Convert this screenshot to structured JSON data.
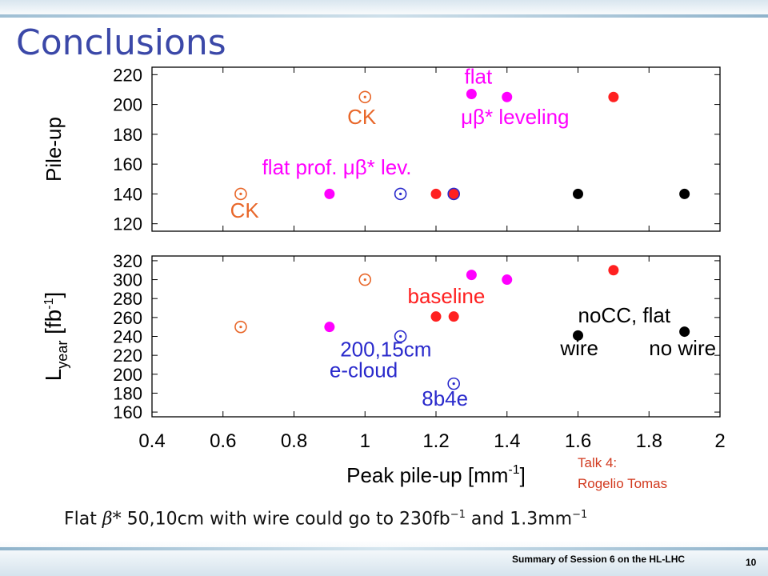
{
  "slide": {
    "title": "Conclusions",
    "talk_note": [
      "Talk 4:",
      "Rogelio Tomas"
    ],
    "conclusion": {
      "part1": "Flat ",
      "beta": "β*",
      "part2": " 50,10cm with wire could go to 230fb",
      "exp1": "−1",
      "part3": " and 1.3mm",
      "exp2": "−1"
    },
    "footer": "Summary of Session 6 on the HL-LHC",
    "page_number": "10"
  },
  "colors": {
    "title": "#3b48a8",
    "orange": "#e8672a",
    "magenta": "#ff00ff",
    "red": "#ff2020",
    "black": "#000000",
    "blue": "#2a2acc",
    "note": "#d23a1f"
  },
  "chart_data": [
    {
      "type": "scatter",
      "ylabel": "Pile-up",
      "ylim": [
        115,
        225
      ],
      "yticks": [
        220,
        200,
        180,
        160,
        140,
        120
      ],
      "xlim": [
        0.4,
        2.0
      ],
      "grid": false,
      "points": [
        {
          "x": 0.65,
          "y": 140,
          "color": "#e8672a",
          "marker": "circle-dot"
        },
        {
          "x": 1.0,
          "y": 205,
          "color": "#e8672a",
          "marker": "circle-dot"
        },
        {
          "x": 0.9,
          "y": 140,
          "color": "#ff00ff",
          "marker": "filled"
        },
        {
          "x": 1.3,
          "y": 207,
          "color": "#ff00ff",
          "marker": "filled"
        },
        {
          "x": 1.4,
          "y": 205,
          "color": "#ff00ff",
          "marker": "filled"
        },
        {
          "x": 1.1,
          "y": 140,
          "color": "#2a2acc",
          "marker": "circle-dot"
        },
        {
          "x": 1.2,
          "y": 140,
          "color": "#ff2020",
          "marker": "filled"
        },
        {
          "x": 1.25,
          "y": 140,
          "color": "#ff2020",
          "marker": "filled"
        },
        {
          "x": 1.25,
          "y": 140,
          "color": "#2a2acc",
          "marker": "ring"
        },
        {
          "x": 1.7,
          "y": 205,
          "color": "#ff2020",
          "marker": "filled"
        },
        {
          "x": 1.6,
          "y": 140,
          "color": "#000000",
          "marker": "filled"
        },
        {
          "x": 1.9,
          "y": 140,
          "color": "#000000",
          "marker": "filled"
        }
      ],
      "annotations": [
        {
          "text": "flat",
          "color": "#ff00ff",
          "x": 1.28,
          "y": 214
        },
        {
          "text": "μβ* leveling",
          "color": "#ff00ff",
          "x": 1.27,
          "y": 187
        },
        {
          "text": "CK",
          "color": "#e8672a",
          "x": 0.95,
          "y": 187
        },
        {
          "text": "flat prof. μβ* lev.",
          "color": "#ff00ff",
          "x": 0.71,
          "y": 153
        },
        {
          "text": "CK",
          "color": "#e8672a",
          "x": 0.62,
          "y": 124
        }
      ]
    },
    {
      "type": "scatter",
      "ylabel": "L",
      "ylabel_sub": "year",
      "ylabel_unit": "[fb",
      "ylabel_exp": "-1",
      "ylabel_close": "]",
      "ylim": [
        155,
        325
      ],
      "yticks": [
        320,
        300,
        280,
        260,
        240,
        220,
        200,
        180,
        160
      ],
      "xlim": [
        0.4,
        2.0
      ],
      "xticks": [
        0.4,
        0.6,
        0.8,
        1,
        1.2,
        1.4,
        1.6,
        1.8,
        2
      ],
      "xlabel": "Peak pile-up [mm",
      "xlabel_exp": "-1",
      "xlabel_close": "]",
      "grid": false,
      "points": [
        {
          "x": 0.65,
          "y": 250,
          "color": "#e8672a",
          "marker": "circle-dot"
        },
        {
          "x": 1.0,
          "y": 300,
          "color": "#e8672a",
          "marker": "circle-dot"
        },
        {
          "x": 0.9,
          "y": 250,
          "color": "#ff00ff",
          "marker": "filled"
        },
        {
          "x": 1.3,
          "y": 305,
          "color": "#ff00ff",
          "marker": "filled"
        },
        {
          "x": 1.4,
          "y": 300,
          "color": "#ff00ff",
          "marker": "filled"
        },
        {
          "x": 1.2,
          "y": 261,
          "color": "#ff2020",
          "marker": "filled"
        },
        {
          "x": 1.25,
          "y": 261,
          "color": "#ff2020",
          "marker": "filled"
        },
        {
          "x": 1.7,
          "y": 310,
          "color": "#ff2020",
          "marker": "filled"
        },
        {
          "x": 1.1,
          "y": 240,
          "color": "#2a2acc",
          "marker": "circle-dot"
        },
        {
          "x": 1.25,
          "y": 190,
          "color": "#2a2acc",
          "marker": "circle-dot"
        },
        {
          "x": 1.6,
          "y": 241,
          "color": "#000000",
          "marker": "filled"
        },
        {
          "x": 1.9,
          "y": 245,
          "color": "#000000",
          "marker": "filled"
        }
      ],
      "annotations": [
        {
          "text": "baseline",
          "color": "#ff2020",
          "x": 1.12,
          "y": 275
        },
        {
          "text": "noCC, flat",
          "color": "#000000",
          "x": 1.6,
          "y": 255
        },
        {
          "text": "wire",
          "color": "#000000",
          "x": 1.55,
          "y": 220
        },
        {
          "text": "no wire",
          "color": "#000000",
          "x": 1.8,
          "y": 220
        },
        {
          "text": "200,15cm",
          "color": "#2a2acc",
          "x": 0.93,
          "y": 219
        },
        {
          "text": "e-cloud",
          "color": "#2a2acc",
          "x": 0.9,
          "y": 197
        },
        {
          "text": "8b4e",
          "color": "#2a2acc",
          "x": 1.16,
          "y": 167
        }
      ]
    }
  ]
}
